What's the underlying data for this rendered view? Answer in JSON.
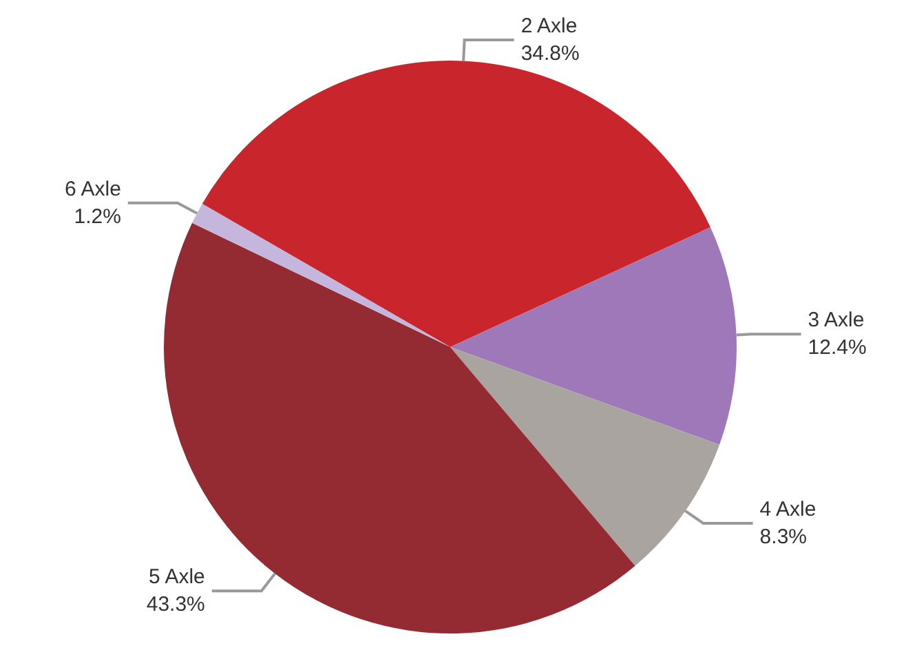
{
  "chart_data": {
    "type": "pie",
    "categories": [
      "2 Axle",
      "3 Axle",
      "4 Axle",
      "5 Axle",
      "6 Axle"
    ],
    "values": [
      34.8,
      12.4,
      8.3,
      43.3,
      1.2
    ],
    "value_labels": [
      "34.8%",
      "12.4%",
      "8.3%",
      "43.3%",
      "1.2%"
    ],
    "colors": [
      "#c9252c",
      "#9e78b8",
      "#a9a4a0",
      "#952b32",
      "#c4b6dc"
    ],
    "legend": false
  }
}
